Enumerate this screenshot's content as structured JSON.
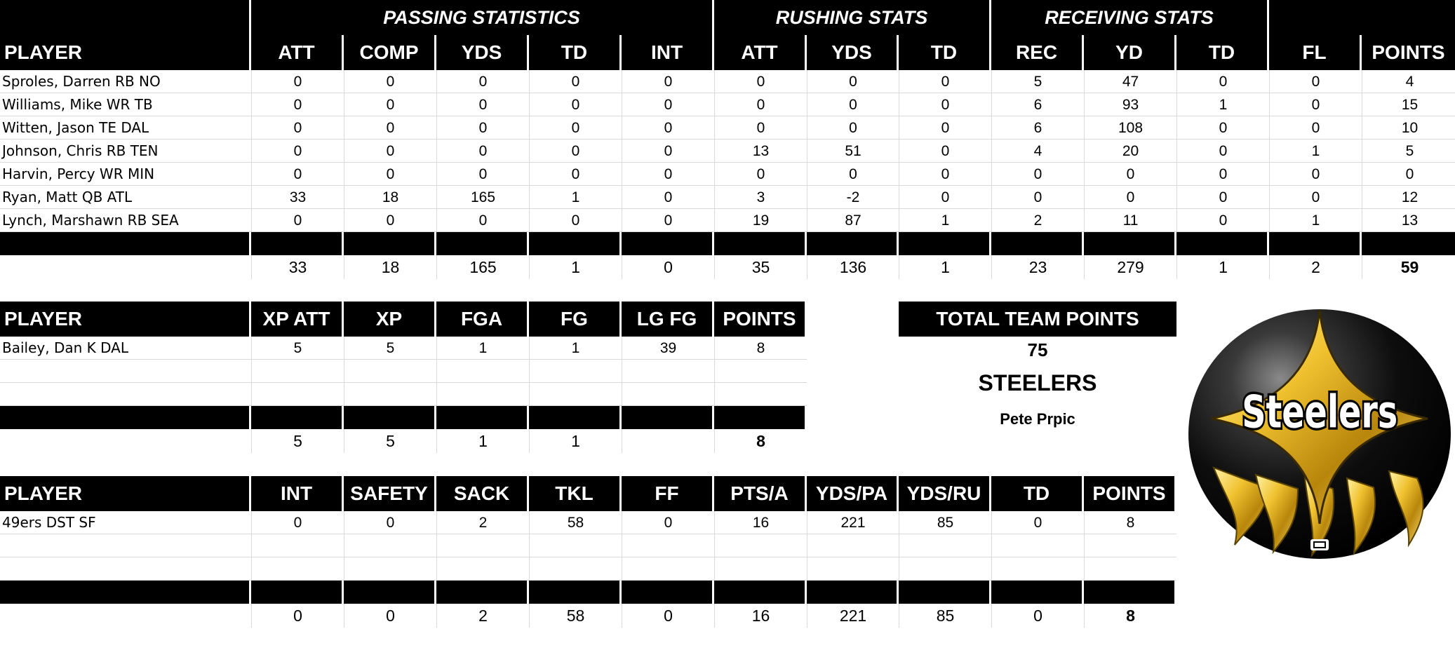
{
  "offense": {
    "group_headers": {
      "passing": "PASSING STATISTICS",
      "rushing": "RUSHING STATS",
      "receiving": "RECEIVING STATS"
    },
    "headers": [
      "PLAYER",
      "ATT",
      "COMP",
      "YDS",
      "TD",
      "INT",
      "ATT",
      "YDS",
      "TD",
      "REC",
      "YD",
      "TD",
      "FL",
      "POINTS"
    ],
    "rows": [
      [
        "Sproles, Darren RB NO",
        "0",
        "0",
        "0",
        "0",
        "0",
        "0",
        "0",
        "0",
        "5",
        "47",
        "0",
        "0",
        "4"
      ],
      [
        "Williams, Mike WR TB",
        "0",
        "0",
        "0",
        "0",
        "0",
        "0",
        "0",
        "0",
        "6",
        "93",
        "1",
        "0",
        "15"
      ],
      [
        "Witten, Jason TE DAL",
        "0",
        "0",
        "0",
        "0",
        "0",
        "0",
        "0",
        "0",
        "6",
        "108",
        "0",
        "0",
        "10"
      ],
      [
        "Johnson, Chris RB TEN",
        "0",
        "0",
        "0",
        "0",
        "0",
        "13",
        "51",
        "0",
        "4",
        "20",
        "0",
        "1",
        "5"
      ],
      [
        "Harvin, Percy WR MIN",
        "0",
        "0",
        "0",
        "0",
        "0",
        "0",
        "0",
        "0",
        "0",
        "0",
        "0",
        "0",
        "0"
      ],
      [
        "Ryan, Matt QB ATL",
        "33",
        "18",
        "165",
        "1",
        "0",
        "3",
        "-2",
        "0",
        "0",
        "0",
        "0",
        "0",
        "12"
      ],
      [
        "Lynch, Marshawn RB SEA",
        "0",
        "0",
        "0",
        "0",
        "0",
        "19",
        "87",
        "1",
        "2",
        "11",
        "0",
        "1",
        "13"
      ]
    ],
    "totals": [
      "33",
      "18",
      "165",
      "1",
      "0",
      "35",
      "136",
      "1",
      "23",
      "279",
      "1",
      "2",
      "59"
    ]
  },
  "kicking": {
    "headers": [
      "PLAYER",
      "XP ATT",
      "XP",
      "FGA",
      "FG",
      "LG FG",
      "POINTS"
    ],
    "rows": [
      [
        "Bailey, Dan K DAL",
        "5",
        "5",
        "1",
        "1",
        "39",
        "8"
      ],
      [
        "",
        "",
        "",
        "",
        "",
        "",
        ""
      ],
      [
        "",
        "",
        "",
        "",
        "",
        "",
        ""
      ]
    ],
    "totals": [
      "5",
      "5",
      "1",
      "1",
      "",
      "8"
    ]
  },
  "defense": {
    "headers": [
      "PLAYER",
      "INT",
      "SAFETY",
      "SACK",
      "TKL",
      "FF",
      "PTS/A",
      "YDS/PA",
      "YDS/RU",
      "TD",
      "POINTS"
    ],
    "rows": [
      [
        "49ers DST SF",
        "0",
        "0",
        "2",
        "58",
        "0",
        "16",
        "221",
        "85",
        "0",
        "8"
      ],
      [
        "",
        "",
        "",
        "",
        "",
        "",
        "",
        "",
        "",
        "",
        ""
      ],
      [
        "",
        "",
        "",
        "",
        "",
        "",
        "",
        "",
        "",
        "",
        ""
      ]
    ],
    "totals": [
      "0",
      "0",
      "2",
      "58",
      "0",
      "16",
      "221",
      "85",
      "0",
      "8"
    ]
  },
  "team": {
    "total_label": "TOTAL TEAM POINTS",
    "total_points": "75",
    "team_name": "STEELERS",
    "owner": "Pete Prpic",
    "logo_text": "Steelers"
  }
}
